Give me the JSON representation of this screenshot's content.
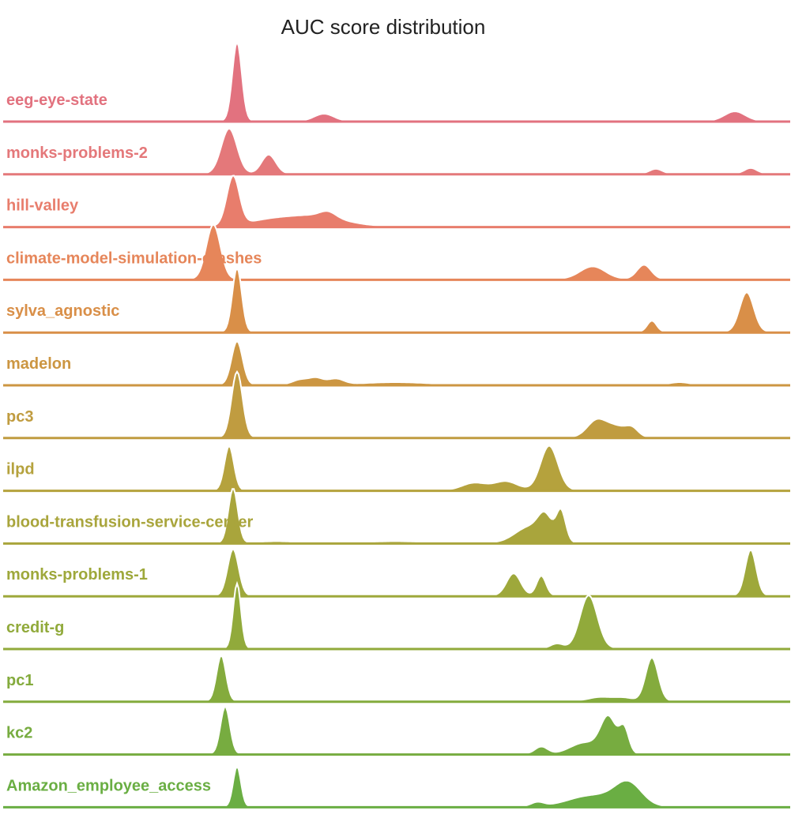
{
  "chart_data": {
    "type": "ridgeline",
    "title": "AUC score distribution",
    "series": [
      {
        "name": "eeg-eye-state",
        "color": "#e2727f",
        "peaks": [
          {
            "x": 0.3,
            "h": 1.0,
            "w": 0.006
          },
          {
            "x": 0.41,
            "h": 0.09,
            "w": 0.012
          },
          {
            "x": 0.93,
            "h": 0.12,
            "w": 0.013
          }
        ]
      },
      {
        "name": "monks-problems-2",
        "color": "#e4787a",
        "peaks": [
          {
            "x": 0.29,
            "h": 0.57,
            "w": 0.01
          },
          {
            "x": 0.34,
            "h": 0.24,
            "w": 0.009
          },
          {
            "x": 0.83,
            "h": 0.06,
            "w": 0.008
          },
          {
            "x": 0.95,
            "h": 0.07,
            "w": 0.008
          }
        ]
      },
      {
        "name": "hill-valley",
        "color": "#e87d6c",
        "peaks": [
          {
            "x": 0.295,
            "h": 0.62,
            "w": 0.008
          },
          {
            "x": 0.34,
            "h": 0.07,
            "w": 0.03
          },
          {
            "x": 0.4,
            "h": 0.13,
            "w": 0.035
          },
          {
            "x": 0.415,
            "h": 0.07,
            "w": 0.01
          }
        ]
      },
      {
        "name": "climate-model-simulation-crashes",
        "color": "#e6865a",
        "peaks": [
          {
            "x": 0.27,
            "h": 0.69,
            "w": 0.009
          },
          {
            "x": 0.75,
            "h": 0.16,
            "w": 0.016
          },
          {
            "x": 0.815,
            "h": 0.18,
            "w": 0.009
          }
        ]
      },
      {
        "name": "sylva_agnostic",
        "color": "#d98f48",
        "peaks": [
          {
            "x": 0.3,
            "h": 0.81,
            "w": 0.006
          },
          {
            "x": 0.825,
            "h": 0.14,
            "w": 0.006
          },
          {
            "x": 0.945,
            "h": 0.5,
            "w": 0.009
          }
        ]
      },
      {
        "name": "madelon",
        "color": "#cc9642",
        "peaks": [
          {
            "x": 0.3,
            "h": 0.55,
            "w": 0.007
          },
          {
            "x": 0.38,
            "h": 0.06,
            "w": 0.01
          },
          {
            "x": 0.4,
            "h": 0.08,
            "w": 0.009
          },
          {
            "x": 0.425,
            "h": 0.07,
            "w": 0.01
          },
          {
            "x": 0.5,
            "h": 0.03,
            "w": 0.04
          },
          {
            "x": 0.86,
            "h": 0.03,
            "w": 0.012
          }
        ]
      },
      {
        "name": "pc3",
        "color": "#c09c40",
        "peaks": [
          {
            "x": 0.3,
            "h": 0.83,
            "w": 0.007
          },
          {
            "x": 0.755,
            "h": 0.21,
            "w": 0.012
          },
          {
            "x": 0.78,
            "h": 0.13,
            "w": 0.013
          },
          {
            "x": 0.8,
            "h": 0.1,
            "w": 0.008
          }
        ]
      },
      {
        "name": "ilpd",
        "color": "#b5a23d",
        "peaks": [
          {
            "x": 0.29,
            "h": 0.56,
            "w": 0.006
          },
          {
            "x": 0.6,
            "h": 0.09,
            "w": 0.015
          },
          {
            "x": 0.64,
            "h": 0.11,
            "w": 0.015
          },
          {
            "x": 0.695,
            "h": 0.56,
            "w": 0.011
          }
        ]
      },
      {
        "name": "blood-transfusion-service-center",
        "color": "#a9a53c",
        "peaks": [
          {
            "x": 0.295,
            "h": 0.69,
            "w": 0.006
          },
          {
            "x": 0.35,
            "h": 0.02,
            "w": 0.02
          },
          {
            "x": 0.5,
            "h": 0.02,
            "w": 0.03
          },
          {
            "x": 0.67,
            "h": 0.2,
            "w": 0.018
          },
          {
            "x": 0.69,
            "h": 0.28,
            "w": 0.009
          },
          {
            "x": 0.71,
            "h": 0.39,
            "w": 0.006
          }
        ]
      },
      {
        "name": "monks-problems-1",
        "color": "#9ea83b",
        "peaks": [
          {
            "x": 0.295,
            "h": 0.59,
            "w": 0.007
          },
          {
            "x": 0.65,
            "h": 0.28,
            "w": 0.009
          },
          {
            "x": 0.685,
            "h": 0.25,
            "w": 0.006
          },
          {
            "x": 0.95,
            "h": 0.58,
            "w": 0.007
          }
        ]
      },
      {
        "name": "credit-g",
        "color": "#91aa3b",
        "peaks": [
          {
            "x": 0.3,
            "h": 0.82,
            "w": 0.005
          },
          {
            "x": 0.705,
            "h": 0.06,
            "w": 0.008
          },
          {
            "x": 0.745,
            "h": 0.67,
            "w": 0.011
          }
        ]
      },
      {
        "name": "pc1",
        "color": "#84ab3d",
        "peaks": [
          {
            "x": 0.28,
            "h": 0.58,
            "w": 0.006
          },
          {
            "x": 0.76,
            "h": 0.05,
            "w": 0.015
          },
          {
            "x": 0.79,
            "h": 0.04,
            "w": 0.012
          },
          {
            "x": 0.825,
            "h": 0.55,
            "w": 0.008
          }
        ]
      },
      {
        "name": "kc2",
        "color": "#77ac40",
        "peaks": [
          {
            "x": 0.285,
            "h": 0.6,
            "w": 0.006
          },
          {
            "x": 0.685,
            "h": 0.09,
            "w": 0.008
          },
          {
            "x": 0.74,
            "h": 0.14,
            "w": 0.018
          },
          {
            "x": 0.77,
            "h": 0.45,
            "w": 0.01
          },
          {
            "x": 0.79,
            "h": 0.3,
            "w": 0.006
          }
        ]
      },
      {
        "name": "Amazon_employee_access",
        "color": "#6aae43",
        "peaks": [
          {
            "x": 0.3,
            "h": 0.51,
            "w": 0.005
          },
          {
            "x": 0.68,
            "h": 0.05,
            "w": 0.008
          },
          {
            "x": 0.75,
            "h": 0.14,
            "w": 0.03
          },
          {
            "x": 0.795,
            "h": 0.28,
            "w": 0.017
          }
        ]
      }
    ]
  }
}
